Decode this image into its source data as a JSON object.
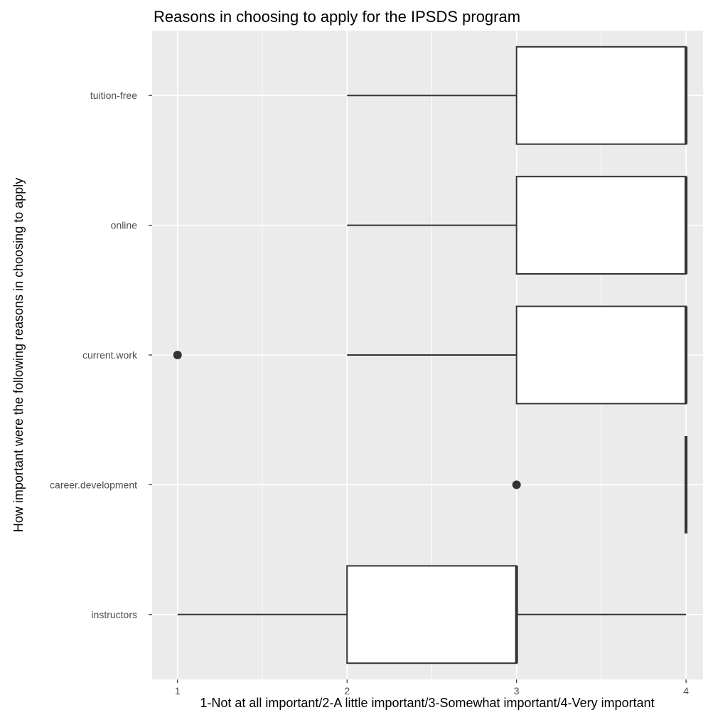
{
  "chart_data": {
    "type": "boxplot",
    "orientation": "horizontal",
    "title": "Reasons in choosing to apply for the IPSDS program",
    "xlabel": "1-Not at all important/2-A little important/3-Somewhat important/4-Very important",
    "ylabel": "How important were the following reasons in choosing to apply",
    "xlim": [
      0.85,
      4.1
    ],
    "x_ticks": [
      1,
      2,
      3,
      4
    ],
    "x_tick_labels": [
      "1",
      "2",
      "3",
      "4"
    ],
    "categories": [
      "tuition-free",
      "online",
      "current.work",
      "career.development",
      "instructors"
    ],
    "boxes": [
      {
        "category": "tuition-free",
        "whisker_low": 2,
        "q1": 3,
        "median": 4,
        "q3": 4,
        "whisker_high": 4,
        "outliers": []
      },
      {
        "category": "online",
        "whisker_low": 2,
        "q1": 3,
        "median": 4,
        "q3": 4,
        "whisker_high": 4,
        "outliers": []
      },
      {
        "category": "current.work",
        "whisker_low": 2,
        "q1": 3,
        "median": 4,
        "q3": 4,
        "whisker_high": 4,
        "outliers": [
          1
        ]
      },
      {
        "category": "career.development",
        "whisker_low": 4,
        "q1": 4,
        "median": 4,
        "q3": 4,
        "whisker_high": 4,
        "outliers": [
          3
        ]
      },
      {
        "category": "instructors",
        "whisker_low": 1,
        "q1": 2,
        "median": 3,
        "q3": 3,
        "whisker_high": 4,
        "outliers": []
      }
    ],
    "grid": true,
    "legend": "none",
    "colors": {
      "panel_background": "#ebebeb",
      "grid_major": "#ffffff",
      "box_fill": "#ffffff",
      "box_line": "#333333",
      "outlier": "#333333",
      "tick_label": "#4d4d4d"
    }
  }
}
